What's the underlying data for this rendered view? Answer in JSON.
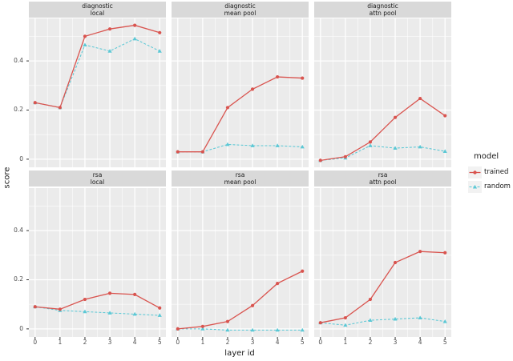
{
  "figure": {
    "background": "#ffffff",
    "panel_bg": "#ebebeb",
    "strip_bg": "#d9d9d9",
    "grid_color": "#ffffff",
    "tick_color": "#333333",
    "tick_label_color": "#4d4d4d"
  },
  "chart_data": {
    "type": "line",
    "title": "",
    "xlabel": "layer id",
    "ylabel": "score",
    "x": [
      0,
      1,
      2,
      3,
      4,
      5
    ],
    "x_tick_labels": [
      "0",
      "1",
      "2",
      "3",
      "4",
      "5"
    ],
    "y_tick_values": [
      0,
      0.2,
      0.4
    ],
    "y_tick_labels": [
      "0",
      "0.2",
      "0.4"
    ],
    "y_minor_values": [
      0.1,
      0.3,
      0.5
    ],
    "x_minor_values": [
      0.5,
      1.5,
      2.5,
      3.5,
      4.5
    ],
    "xlim": [
      -0.25,
      5.25
    ],
    "ylim": [
      -0.033,
      0.573
    ],
    "grid": true,
    "facet_grid": {
      "rows": [
        "diagnostic",
        "rsa"
      ],
      "cols": [
        "local",
        "mean pool",
        "attn pool"
      ]
    },
    "legend": {
      "title": "model",
      "position": "right",
      "entries": [
        {
          "label": "trained",
          "color": "#d9544f",
          "linestyle": "solid",
          "marker": "circle"
        },
        {
          "label": "random",
          "color": "#5bc8d5",
          "linestyle": "dashed",
          "marker": "triangle"
        }
      ]
    },
    "facets": [
      {
        "row": "diagnostic",
        "col": "local",
        "series": [
          {
            "name": "trained",
            "values": [
              0.23,
              0.21,
              0.5,
              0.53,
              0.545,
              0.515
            ]
          },
          {
            "name": "random",
            "values": [
              0.23,
              0.21,
              0.465,
              0.44,
              0.49,
              0.44
            ]
          }
        ]
      },
      {
        "row": "diagnostic",
        "col": "mean pool",
        "series": [
          {
            "name": "trained",
            "values": [
              0.03,
              0.03,
              0.21,
              0.285,
              0.335,
              0.33
            ]
          },
          {
            "name": "random",
            "values": [
              0.03,
              0.03,
              0.06,
              0.055,
              0.055,
              0.05
            ]
          }
        ]
      },
      {
        "row": "diagnostic",
        "col": "attn pool",
        "series": [
          {
            "name": "trained",
            "values": [
              -0.005,
              0.01,
              0.07,
              0.17,
              0.247,
              0.177
            ]
          },
          {
            "name": "random",
            "values": [
              -0.005,
              0.005,
              0.055,
              0.045,
              0.05,
              0.032
            ]
          }
        ]
      },
      {
        "row": "rsa",
        "col": "local",
        "series": [
          {
            "name": "trained",
            "values": [
              0.09,
              0.08,
              0.12,
              0.145,
              0.14,
              0.085
            ]
          },
          {
            "name": "random",
            "values": [
              0.09,
              0.075,
              0.07,
              0.065,
              0.06,
              0.055
            ]
          }
        ]
      },
      {
        "row": "rsa",
        "col": "mean pool",
        "series": [
          {
            "name": "trained",
            "values": [
              0.0,
              0.01,
              0.03,
              0.095,
              0.185,
              0.235
            ]
          },
          {
            "name": "random",
            "values": [
              0.0,
              0.0,
              -0.005,
              -0.005,
              -0.005,
              -0.005
            ]
          }
        ]
      },
      {
        "row": "rsa",
        "col": "attn pool",
        "series": [
          {
            "name": "trained",
            "values": [
              0.025,
              0.045,
              0.12,
              0.27,
              0.315,
              0.31
            ]
          },
          {
            "name": "random",
            "values": [
              0.025,
              0.015,
              0.035,
              0.04,
              0.045,
              0.03
            ]
          }
        ]
      }
    ]
  }
}
